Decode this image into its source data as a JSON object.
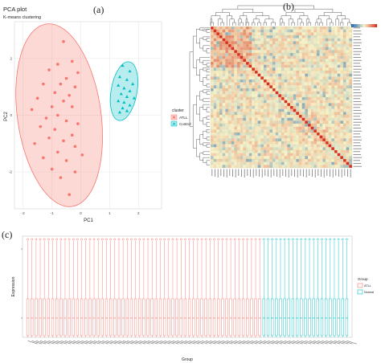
{
  "panels": {
    "a": {
      "panel_label": "(a)",
      "title": "PCA plot",
      "subtitle": "K-means clustering",
      "chart_data": {
        "type": "scatter",
        "xlabel": "PC1",
        "ylabel": "PC2",
        "xlim": [
          -2.3,
          2.8
        ],
        "ylim": [
          -3.3,
          3.3
        ],
        "xticks": [
          -2,
          -1,
          0,
          1,
          2
        ],
        "yticks": [
          -2,
          0,
          2
        ],
        "legend_title": "cluster",
        "legend_position": "right",
        "series": [
          {
            "name": "ATLL",
            "color": "#f8766d",
            "marker": "circle",
            "ellipse": {
              "cx": -0.75,
              "cy": 0.0,
              "rx": 1.45,
              "ry": 3.25,
              "angle": -8
            },
            "points": [
              [
                -0.6,
                2.6
              ],
              [
                -0.3,
                1.9
              ],
              [
                -0.8,
                1.8
              ],
              [
                -0.1,
                1.5
              ],
              [
                -1.1,
                1.6
              ],
              [
                -0.5,
                1.3
              ],
              [
                -0.7,
                1.1
              ],
              [
                -1.3,
                1.1
              ],
              [
                -0.2,
                1.0
              ],
              [
                -0.9,
                0.8
              ],
              [
                -0.4,
                0.7
              ],
              [
                -1.5,
                0.6
              ],
              [
                -0.6,
                0.5
              ],
              [
                -1.0,
                0.3
              ],
              [
                -0.3,
                0.3
              ],
              [
                -1.7,
                0.2
              ],
              [
                -0.8,
                0.0
              ],
              [
                -1.2,
                -0.1
              ],
              [
                -0.5,
                -0.2
              ],
              [
                -0.1,
                -0.3
              ],
              [
                -1.4,
                -0.4
              ],
              [
                -0.9,
                -0.5
              ],
              [
                -0.3,
                -0.7
              ],
              [
                -1.1,
                -0.8
              ],
              [
                -0.6,
                -0.9
              ],
              [
                -1.6,
                -1.0
              ],
              [
                -0.2,
                -1.1
              ],
              [
                -0.8,
                -1.3
              ],
              [
                -1.3,
                -1.5
              ],
              [
                -0.5,
                -1.6
              ],
              [
                0.05,
                -1.4
              ],
              [
                -1.0,
                -1.9
              ],
              [
                -0.7,
                -2.2
              ],
              [
                -0.2,
                -2.0
              ],
              [
                -0.4,
                -2.8
              ]
            ]
          },
          {
            "name": "Control",
            "color": "#00bfc4",
            "marker": "triangle",
            "ellipse": {
              "cx": 1.5,
              "cy": 0.85,
              "rx": 0.45,
              "ry": 1.05,
              "angle": 10
            },
            "points": [
              [
                1.45,
                1.75
              ],
              [
                1.7,
                1.55
              ],
              [
                1.35,
                1.35
              ],
              [
                1.6,
                1.25
              ],
              [
                1.8,
                1.1
              ],
              [
                1.3,
                1.05
              ],
              [
                1.5,
                0.95
              ],
              [
                1.7,
                0.85
              ],
              [
                1.4,
                0.75
              ],
              [
                1.6,
                0.65
              ],
              [
                1.85,
                0.6
              ],
              [
                1.3,
                0.5
              ],
              [
                1.5,
                0.45
              ],
              [
                1.7,
                0.35
              ],
              [
                1.45,
                0.25
              ],
              [
                1.6,
                0.15
              ],
              [
                1.35,
                0.1
              ]
            ]
          }
        ]
      }
    },
    "b": {
      "panel_label": "(b)",
      "chart_data": {
        "type": "heatmap",
        "colorscale": [
          "#2166ac",
          "#f7f3c8",
          "#d7301f"
        ],
        "legend_position": "top-right"
      }
    },
    "c": {
      "panel_label": "(c)",
      "chart_data": {
        "type": "box",
        "xlabel": "Group",
        "ylabel": "Expression",
        "legend_title": "Group",
        "legend_position": "right",
        "series": [
          {
            "name": "ATLL",
            "color": "#f8766d",
            "count": 57
          },
          {
            "name": "Normal",
            "color": "#00bfc4",
            "count": 21
          }
        ]
      }
    }
  }
}
